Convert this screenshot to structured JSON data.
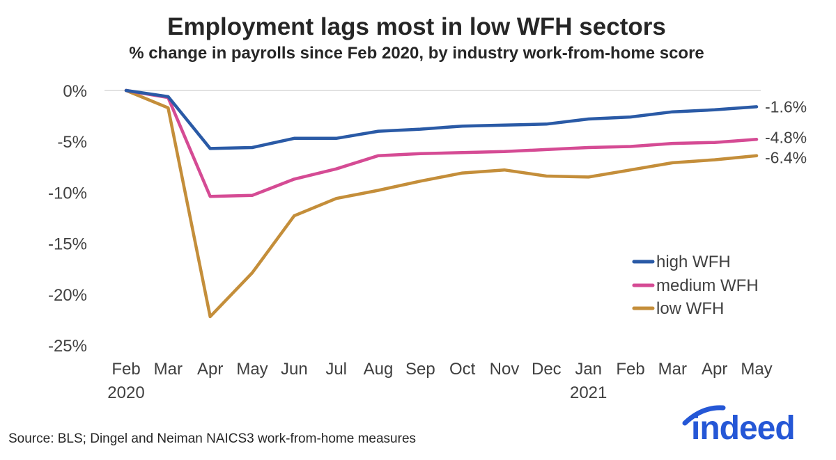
{
  "colors": {
    "high": "#2a5aa6",
    "medium": "#d54b94",
    "low": "#c48e3a",
    "axis": "#d9d9d9",
    "text": "#404040",
    "brand": "#2557d6"
  },
  "chart_data": {
    "type": "line",
    "title": "Employment lags most in low WFH sectors",
    "subtitle": "% change in payrolls since Feb 2020, by industry work-from-home score",
    "categories": [
      "Feb",
      "Mar",
      "Apr",
      "May",
      "Jun",
      "Jul",
      "Aug",
      "Sep",
      "Oct",
      "Nov",
      "Dec",
      "Jan",
      "Feb",
      "Mar",
      "Apr",
      "May"
    ],
    "year_labels": [
      {
        "index": 0,
        "text": "2020"
      },
      {
        "index": 11,
        "text": "2021"
      }
    ],
    "ylim": [
      -25,
      0
    ],
    "yticks": [
      0,
      -5,
      -10,
      -15,
      -20,
      -25
    ],
    "ytick_labels": [
      "0%",
      "-5%",
      "-10%",
      "-15%",
      "-20%",
      "-25%"
    ],
    "series": [
      {
        "key": "high",
        "name": "high WFH",
        "end_label": "-1.6%",
        "values": [
          0,
          -0.6,
          -5.7,
          -5.6,
          -4.7,
          -4.7,
          -4.0,
          -3.8,
          -3.5,
          -3.4,
          -3.3,
          -2.8,
          -2.6,
          -2.1,
          -1.9,
          -1.6
        ]
      },
      {
        "key": "medium",
        "name": "medium WFH",
        "end_label": "-4.8%",
        "values": [
          0,
          -0.7,
          -10.4,
          -10.3,
          -8.7,
          -7.7,
          -6.4,
          -6.2,
          -6.1,
          -6.0,
          -5.8,
          -5.6,
          -5.5,
          -5.2,
          -5.1,
          -4.8
        ]
      },
      {
        "key": "low",
        "name": "low WFH",
        "end_label": "-6.4%",
        "values": [
          0,
          -1.7,
          -22.2,
          -17.9,
          -12.3,
          -10.6,
          -9.8,
          -8.9,
          -8.1,
          -7.8,
          -8.4,
          -8.5,
          -7.8,
          -7.1,
          -6.8,
          -6.4
        ]
      }
    ],
    "legend_position": "bottom-right",
    "source": "Source: BLS; Dingel and Neiman NAICS3 work-from-home measures"
  },
  "brand": {
    "logo_text": "indeed",
    "logo_icon": "indeed-arc-icon"
  }
}
